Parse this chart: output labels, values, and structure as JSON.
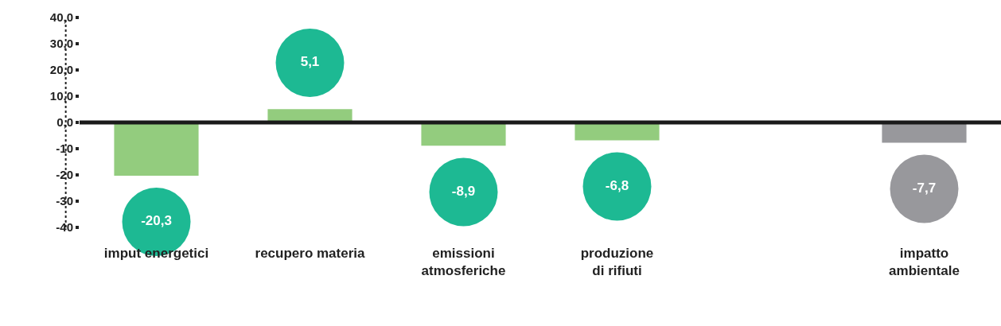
{
  "chart_data": {
    "type": "bar",
    "categories": [
      "imput energetici",
      "recupero materia",
      "emissioni atmosferiche",
      "produzione di rifiuti",
      null,
      "impatto ambientale"
    ],
    "values": [
      -20.3,
      5.1,
      -8.9,
      -6.8,
      null,
      -7.7
    ],
    "colors": [
      "#93cc7e",
      "#93cc7e",
      "#93cc7e",
      "#93cc7e",
      "#93cc7e",
      "#98989c"
    ],
    "value_labels": [
      "-20,3",
      "5,1",
      "-8,9",
      "-6,8",
      null,
      "-7,7"
    ],
    "ylim": [
      -40,
      40
    ],
    "yticks": [
      {
        "value": 40,
        "label": "40,0"
      },
      {
        "value": 30,
        "label": "30,0"
      },
      {
        "value": 20,
        "label": "20,0"
      },
      {
        "value": 10,
        "label": "10,0"
      },
      {
        "value": 0,
        "label": "0,0"
      },
      -10,
      -20,
      -30,
      -40
    ],
    "ref_lines": [
      {
        "axis": "y",
        "value": 0,
        "color": "#1a1a1a"
      }
    ],
    "grid": false,
    "legend": false
  }
}
